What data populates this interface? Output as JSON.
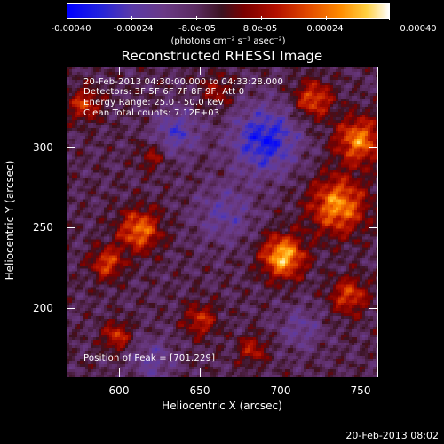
{
  "colorbar": {
    "labels": [
      "-0.00040",
      "-0.00024",
      "-8.0e-05",
      "8.0e-05",
      "0.00024",
      "0.00040"
    ],
    "values": [
      -0.0004,
      -0.00024,
      -8e-05,
      8e-05,
      0.00024,
      0.0004
    ],
    "units": "(photons cm⁻² s⁻¹ asec⁻²)",
    "range": [
      -0.0004,
      0.0004
    ]
  },
  "chart_data": {
    "type": "heatmap",
    "title": "Reconstructed RHESSI Image",
    "xlabel": "Heliocentric X (arcsec)",
    "ylabel": "Heliocentric Y (arcsec)",
    "xlim": [
      567,
      760
    ],
    "ylim": [
      155,
      345
    ],
    "xticks": [
      600,
      650,
      700,
      750
    ],
    "yticks": [
      200,
      250,
      300
    ],
    "peak": [
      701,
      229
    ]
  },
  "annotations": {
    "time_range": "20-Feb-2013 04:30:00.000 to 04:33:28.000",
    "detectors": "Detectors: 3F 5F 6F 7F 8F 9F, Att 0",
    "energy_range": "Energy Range: 25.0 - 50.0 keV",
    "clean_counts": "Clean     Total counts: 7.12E+03",
    "peak_position": "Position of Peak = [701,229]"
  },
  "timestamp": "20-Feb-2013 08:02"
}
